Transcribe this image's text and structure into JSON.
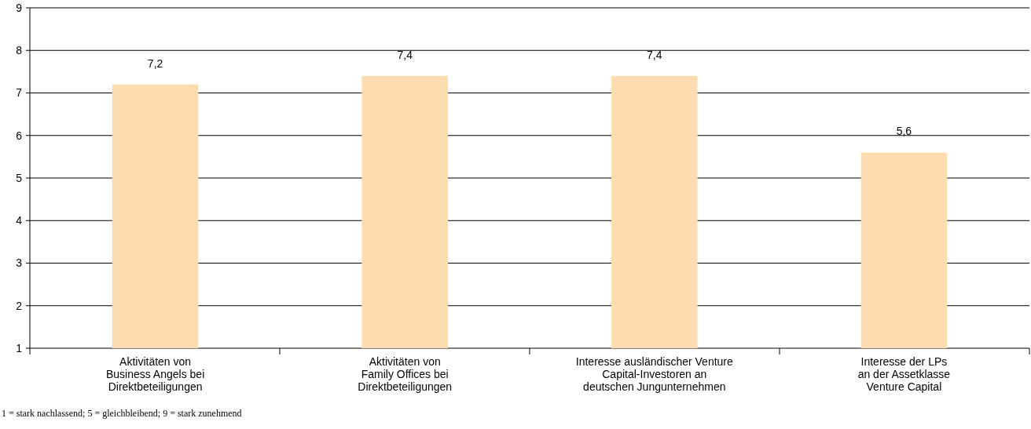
{
  "chart_data": {
    "type": "bar",
    "categories": [
      "Aktivitäten von\nBusiness Angels bei\nDirektbeteiligungen",
      "Aktivitäten von\nFamily Offices bei\nDirektbeteiligungen",
      "Interesse ausländischer Venture\nCapital-Investoren an\ndeutschen Jungunternehmen",
      "Interesse der LPs\nan der Assetklasse\nVenture Capital"
    ],
    "values": [
      7.2,
      7.4,
      7.4,
      5.6
    ],
    "value_labels": [
      "7,2",
      "7,4",
      "7,4",
      "5,6"
    ],
    "color": "#fddcaf",
    "ylim": [
      1,
      9
    ],
    "yticks": [
      1,
      2,
      3,
      4,
      5,
      6,
      7,
      8,
      9
    ],
    "grid": "y",
    "annotations": [
      "1 = stark nachlassend; 5 = gleichbleibend; 9 = stark zunehmend"
    ]
  }
}
